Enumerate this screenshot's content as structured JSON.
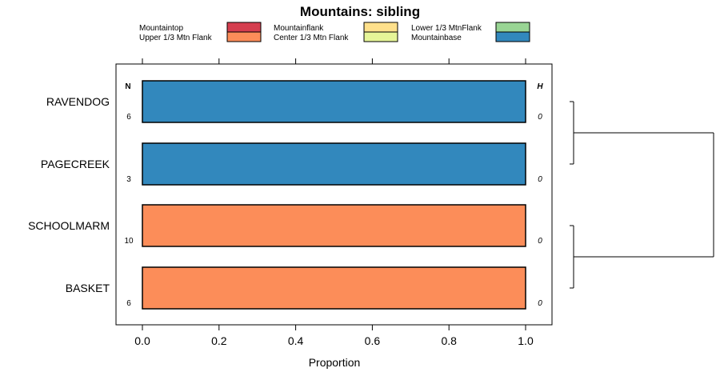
{
  "chart_data": {
    "type": "bar",
    "orientation": "horizontal",
    "stacked": true,
    "title": "Mountains: sibling",
    "xlabel": "Proportion",
    "xlim": [
      -0.07,
      1.07
    ],
    "xticks": [
      0.0,
      0.2,
      0.4,
      0.6,
      0.8,
      1.0
    ],
    "xtick_labels": [
      "0.0",
      "0.2",
      "0.4",
      "0.6",
      "0.8",
      "1.0"
    ],
    "legend": [
      {
        "name": "Mountaintop",
        "color": "#D53E4F"
      },
      {
        "name": "Upper 1/3 Mtn Flank",
        "color": "#FC8D59"
      },
      {
        "name": "Mountainflank",
        "color": "#FEE08B"
      },
      {
        "name": "Center 1/3 Mtn Flank",
        "color": "#E6F598"
      },
      {
        "name": "Lower 1/3 MtnFlank",
        "color": "#99D594"
      },
      {
        "name": "Mountainbase",
        "color": "#3288BD"
      }
    ],
    "column_headers": {
      "n": "N",
      "h": "H"
    },
    "categories": [
      "RAVENDOG",
      "PAGECREEK",
      "SCHOOLMARM",
      "BASKET"
    ],
    "n_values": [
      6,
      3,
      10,
      6
    ],
    "h_values": [
      0,
      0,
      0,
      0
    ],
    "series": [
      {
        "name": "Mountaintop",
        "values": [
          0,
          0,
          0,
          0
        ]
      },
      {
        "name": "Upper 1/3 Mtn Flank",
        "values": [
          0,
          0,
          1,
          1
        ]
      },
      {
        "name": "Mountainflank",
        "values": [
          0,
          0,
          0,
          0
        ]
      },
      {
        "name": "Center 1/3 Mtn Flank",
        "values": [
          0,
          0,
          0,
          0
        ]
      },
      {
        "name": "Lower 1/3 MtnFlank",
        "values": [
          0,
          0,
          0,
          0
        ]
      },
      {
        "name": "Mountainbase",
        "values": [
          1,
          1,
          0,
          0
        ]
      }
    ],
    "dendrogram": {
      "merges": [
        {
          "left": "RAVENDOG",
          "right": "PAGECREEK"
        },
        {
          "left": "SCHOOLMARM",
          "right": "BASKET"
        },
        {
          "left": "group-1",
          "right": "group-2"
        }
      ]
    }
  }
}
